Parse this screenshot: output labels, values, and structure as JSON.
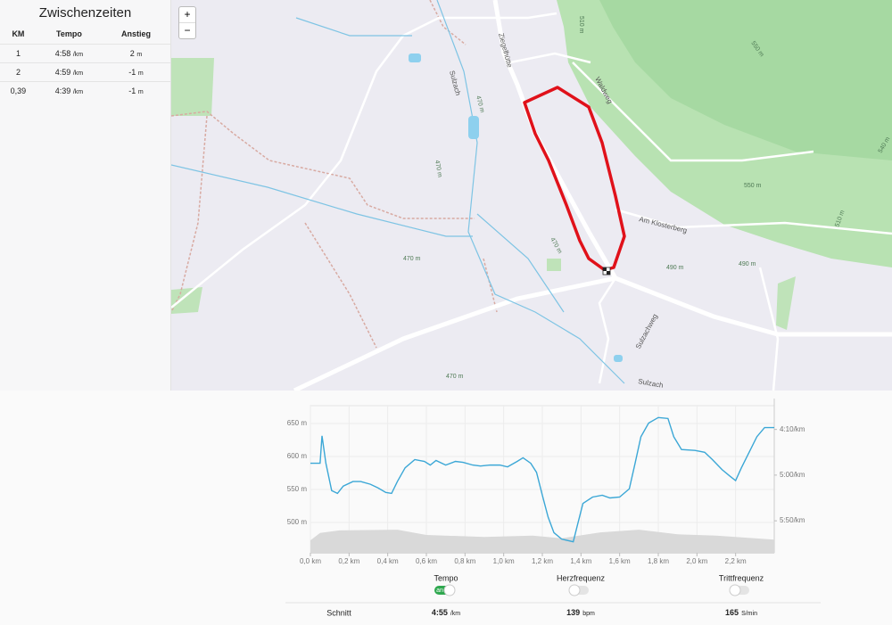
{
  "splits": {
    "title": "Zwischenzeiten",
    "headers": [
      "KM",
      "Tempo",
      "Anstieg"
    ],
    "rows": [
      {
        "km": "1",
        "tempo": "4:58",
        "tempo_unit": "/km",
        "climb": "2",
        "climb_unit": "m"
      },
      {
        "km": "2",
        "tempo": "4:59",
        "tempo_unit": "/km",
        "climb": "-1",
        "climb_unit": "m"
      },
      {
        "km": "0,39",
        "tempo": "4:39",
        "tempo_unit": "/km",
        "climb": "-1",
        "climb_unit": "m"
      }
    ]
  },
  "map": {
    "zoom_in": "+",
    "zoom_out": "−",
    "labels": [
      "Sulzach",
      "470 m",
      "470 m",
      "470 m",
      "470 m",
      "470 m",
      "Ziegelhütte",
      "Waldweg",
      "Am Klosterberg",
      "Sulzachweg",
      "490 m",
      "490 m",
      "550 m",
      "550 m",
      "510 m",
      "510 m",
      "540 m",
      "Sulzach"
    ]
  },
  "chart_data": {
    "type": "line",
    "grid": true,
    "xlim": [
      0,
      2.4
    ],
    "xticks": [
      {
        "value": 0,
        "label": "0,0 km"
      },
      {
        "value": 0.2,
        "label": "0,2 km"
      },
      {
        "value": 0.4,
        "label": "0,4 km"
      },
      {
        "value": 0.6,
        "label": "0,6 km"
      },
      {
        "value": 0.8,
        "label": "0,8 km"
      },
      {
        "value": 1.0,
        "label": "1,0 km"
      },
      {
        "value": 1.2,
        "label": "1,2 km"
      },
      {
        "value": 1.4,
        "label": "1,4 km"
      },
      {
        "value": 1.6,
        "label": "1,6 km"
      },
      {
        "value": 1.8,
        "label": "1,8 km"
      },
      {
        "value": 2.0,
        "label": "2,0 km"
      },
      {
        "value": 2.2,
        "label": "2,2 km"
      }
    ],
    "ylim": [
      454,
      677
    ],
    "yticks": [
      {
        "value": 500,
        "label": "500 m"
      },
      {
        "value": 550,
        "label": "550 m"
      },
      {
        "value": 600,
        "label": "600 m"
      },
      {
        "value": 650,
        "label": "650 m"
      }
    ],
    "y2lim": [
      385,
      224
    ],
    "y2ticks": [
      {
        "value": 250,
        "label": "4:10/km"
      },
      {
        "value": 300,
        "label": "5:00/km"
      },
      {
        "value": 350,
        "label": "5:50/km"
      }
    ],
    "series": [
      {
        "type": "area",
        "color": "#d9d9d9",
        "x": [
          0.0,
          0.05,
          0.15,
          0.45,
          0.6,
          0.9,
          1.15,
          1.3,
          1.5,
          1.7,
          1.9,
          2.1,
          2.4
        ],
        "values": [
          473,
          484,
          488,
          489,
          481,
          478,
          480,
          476,
          485,
          489,
          482,
          480,
          474
        ]
      },
      {
        "type": "line",
        "axis": "y2",
        "color": "#3ba7d6",
        "x": [
          0.0,
          0.05,
          0.06,
          0.08,
          0.11,
          0.14,
          0.17,
          0.22,
          0.26,
          0.31,
          0.35,
          0.39,
          0.42,
          0.45,
          0.49,
          0.54,
          0.59,
          0.62,
          0.65,
          0.7,
          0.75,
          0.79,
          0.84,
          0.88,
          0.93,
          0.98,
          1.02,
          1.07,
          1.1,
          1.14,
          1.17,
          1.2,
          1.23,
          1.26,
          1.3,
          1.36,
          1.38,
          1.41,
          1.46,
          1.51,
          1.55,
          1.6,
          1.65,
          1.68,
          1.71,
          1.75,
          1.8,
          1.85,
          1.88,
          1.92,
          1.99,
          2.04,
          2.08,
          2.13,
          2.17,
          2.2,
          2.23,
          2.27,
          2.31,
          2.35,
          2.4
        ],
        "values": [
          287,
          287,
          257,
          287,
          317,
          320,
          312,
          307,
          307,
          310,
          314,
          319,
          320,
          307,
          292,
          283,
          285,
          289,
          284,
          289,
          285,
          286,
          289,
          290,
          289,
          289,
          291,
          285,
          281,
          287,
          297,
          322,
          346,
          363,
          370,
          373,
          356,
          331,
          324,
          322,
          325,
          324,
          315,
          287,
          258,
          243,
          237,
          238,
          258,
          272,
          273,
          275,
          283,
          294,
          301,
          306,
          292,
          275,
          258,
          248,
          248
        ]
      }
    ]
  },
  "toggles": [
    {
      "label": "Tempo",
      "state": "an"
    },
    {
      "label": "Herzfrequenz"
    },
    {
      "label": "Trittfrequenz"
    }
  ],
  "summary": {
    "label": "Schnitt",
    "items": [
      {
        "value": "4:55",
        "unit": "/km"
      },
      {
        "value": "139",
        "unit": "bpm"
      },
      {
        "value": "165",
        "unit": "S/min"
      }
    ]
  }
}
